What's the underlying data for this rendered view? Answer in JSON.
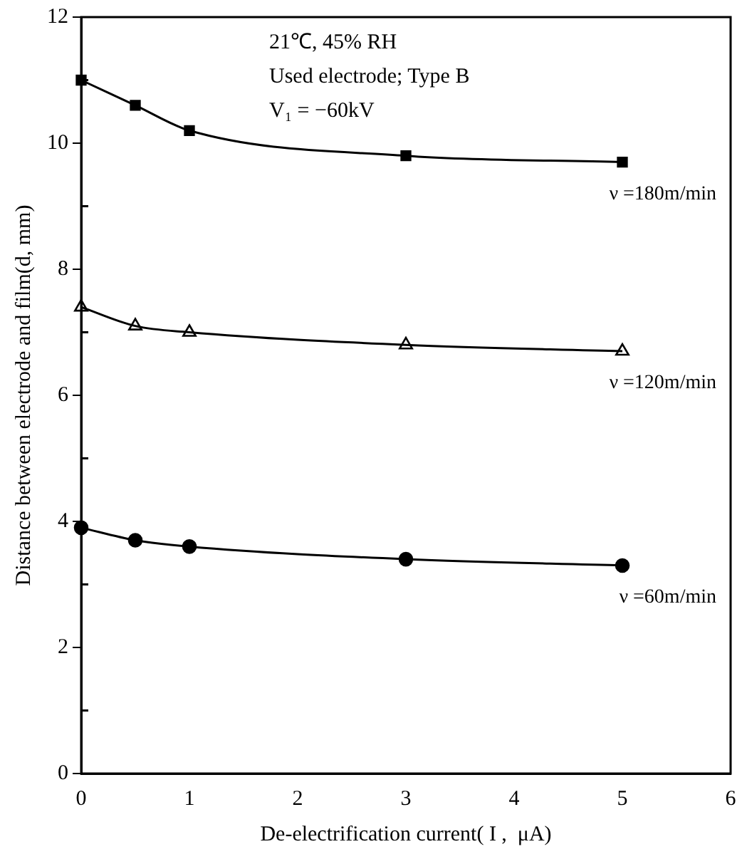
{
  "chart_data": {
    "type": "line",
    "xlabel": "De-electrification current( I ,  μA)",
    "ylabel": "Distance between electrode and film(d, mm)",
    "x": [
      0,
      0.5,
      1,
      3,
      5
    ],
    "series": [
      {
        "name": "ν =180m/min",
        "color": "#000000",
        "marker": "square",
        "values": [
          11.0,
          10.6,
          10.2,
          9.8,
          9.7
        ]
      },
      {
        "name": "ν =120m/min",
        "color": "#000000",
        "marker": "triangle",
        "values": [
          7.4,
          7.1,
          7.0,
          6.8,
          6.7
        ]
      },
      {
        "name": "ν =60m/min",
        "color": "#000000",
        "marker": "circle",
        "values": [
          3.9,
          3.7,
          3.6,
          3.4,
          3.3
        ]
      }
    ],
    "xlim": [
      0,
      6
    ],
    "xticks": [
      0,
      1,
      2,
      3,
      4,
      5,
      6
    ],
    "ylim": [
      0,
      12
    ],
    "yticks": [
      0,
      {
        "value": 1,
        "label": null
      },
      2,
      {
        "value": 3,
        "label": null
      },
      4,
      {
        "value": 5,
        "label": null
      },
      6,
      {
        "value": 7,
        "label": null
      },
      8,
      {
        "value": 9,
        "label": null
      },
      10,
      {
        "value": 11,
        "label": null
      },
      12
    ],
    "annotations": [
      "21℃, 45% RH",
      "Used electrode; Type B",
      "V₁ = −60kV"
    ],
    "grid": false,
    "legend": false,
    "line_style": "solid"
  }
}
